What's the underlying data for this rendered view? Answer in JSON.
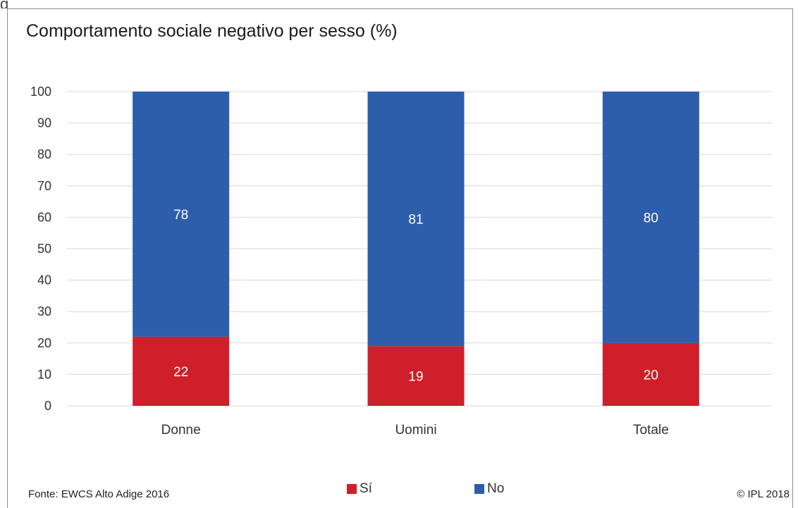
{
  "header": {
    "cut_text": "g"
  },
  "chart_data": {
    "type": "bar",
    "stacked": true,
    "title": "Comportamento sociale negativo per sesso (%)",
    "categories": [
      "Donne",
      "Uomini",
      "Totale"
    ],
    "series": [
      {
        "name": "Sí",
        "values": [
          22,
          19,
          20
        ],
        "color": "#cf1f2a"
      },
      {
        "name": "No",
        "values": [
          78,
          81,
          80
        ],
        "color": "#2d5eab"
      }
    ],
    "ylim": [
      0,
      100
    ],
    "yticks": [
      "0",
      "10",
      "20",
      "30",
      "40",
      "50",
      "60",
      "70",
      "80",
      "90",
      "100"
    ],
    "grid": true,
    "legend_position": "bottom"
  },
  "footer": {
    "source": "Fonte: EWCS Alto Adige 2016",
    "copyright": "© IPL 2018"
  }
}
